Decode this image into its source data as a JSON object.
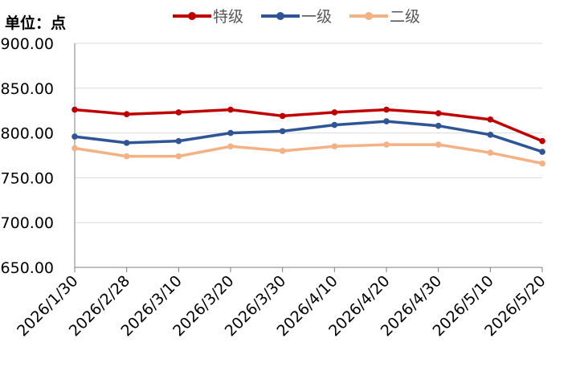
{
  "unit_label": "单位：点",
  "chart_data": {
    "type": "line",
    "title": "",
    "xlabel": "",
    "ylabel": "",
    "ylim": [
      650,
      900
    ],
    "yticks": [
      "650.00",
      "700.00",
      "750.00",
      "800.00",
      "850.00",
      "900.00"
    ],
    "categories": [
      "2026/1/30",
      "2026/2/28",
      "2026/3/10",
      "2026/3/20",
      "2026/3/30",
      "2026/4/10",
      "2026/4/20",
      "2026/4/30",
      "2026/5/10",
      "2026/5/20"
    ],
    "series": [
      {
        "name": "特级",
        "color": "#c00000",
        "values": [
          826,
          821,
          823,
          826,
          819,
          823,
          826,
          822,
          815,
          791
        ]
      },
      {
        "name": "一级",
        "color": "#2f5597",
        "values": [
          796,
          789,
          791,
          800,
          802,
          809,
          813,
          808,
          798,
          779
        ]
      },
      {
        "name": "二级",
        "color": "#f4b183",
        "values": [
          783,
          774,
          774,
          785,
          780,
          785,
          787,
          787,
          778,
          766
        ]
      }
    ],
    "legend_position": "top-center",
    "grid": "horizontal"
  }
}
